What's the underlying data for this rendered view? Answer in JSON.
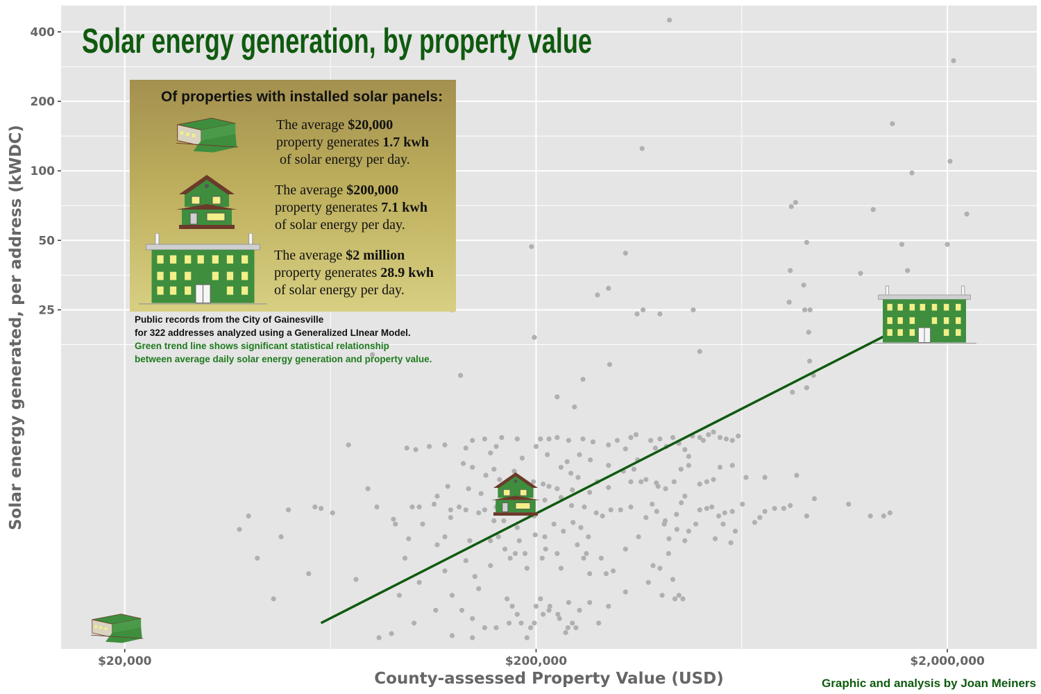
{
  "colors": {
    "panel": "#e5e5e5",
    "grid": "#ffffff",
    "point": "#b0b0b0",
    "trend": "#0f5a0f",
    "title": "#0f5a0f",
    "axis_text": "#666666",
    "house_green": "#3e8e3e",
    "roof_brown": "#6b3a2a",
    "window_yellow": "#f3ef8a"
  },
  "chart_data": {
    "type": "scatter",
    "title": "Solar energy generation, by property value",
    "xlabel": "County-assessed Property Value (USD)",
    "ylabel": "Solar energy generated, per address (kWDC)",
    "x_scale": "log",
    "y_scale": "log",
    "xlim": [
      14000,
      3300000
    ],
    "ylim": [
      0.85,
      520
    ],
    "x_ticks": [
      {
        "value": 20000,
        "label": "$20,000"
      },
      {
        "value": 200000,
        "label": "$200,000"
      },
      {
        "value": 2000000,
        "label": "$2,000,000"
      }
    ],
    "y_ticks": [
      {
        "value": 25,
        "label": "25"
      },
      {
        "value": 50,
        "label": "50"
      },
      {
        "value": 100,
        "label": "100"
      },
      {
        "value": 200,
        "label": "200"
      },
      {
        "value": 400,
        "label": "400"
      }
    ],
    "trend_line": {
      "points": [
        [
          60000,
          1.1
        ],
        [
          2000000,
          26.5
        ]
      ]
    },
    "points": [
      [
        422000,
        450
      ],
      [
        2070000,
        300
      ],
      [
        1470000,
        160
      ],
      [
        2030000,
        110
      ],
      [
        1640000,
        98
      ],
      [
        362000,
        125
      ],
      [
        835000,
        70
      ],
      [
        855000,
        73
      ],
      [
        1320000,
        68
      ],
      [
        2230000,
        65
      ],
      [
        195000,
        47
      ],
      [
        330000,
        44
      ],
      [
        910000,
        49
      ],
      [
        1550000,
        48
      ],
      [
        2000000,
        48
      ],
      [
        1230000,
        36
      ],
      [
        830000,
        37
      ],
      [
        1930000,
        25
      ],
      [
        1600000,
        37
      ],
      [
        895000,
        32
      ],
      [
        282000,
        29
      ],
      [
        300000,
        31
      ],
      [
        352000,
        24
      ],
      [
        364000,
        25
      ],
      [
        400000,
        24
      ],
      [
        482000,
        25
      ],
      [
        825000,
        27
      ],
      [
        900000,
        25
      ],
      [
        927000,
        25
      ],
      [
        1770000,
        25
      ],
      [
        1640000,
        25
      ],
      [
        125000,
        25
      ],
      [
        920000,
        20
      ],
      [
        1580000,
        19
      ],
      [
        198000,
        19
      ],
      [
        500000,
        16.5
      ],
      [
        925000,
        15
      ],
      [
        302000,
        14.5
      ],
      [
        131000,
        13
      ],
      [
        945000,
        13
      ],
      [
        260000,
        12.5
      ],
      [
        910000,
        11.5
      ],
      [
        225000,
        10.5
      ],
      [
        248000,
        9.5
      ],
      [
        840000,
        11
      ],
      [
        80000,
        16
      ],
      [
        70000,
        6.5
      ],
      [
        340000,
        7
      ],
      [
        350000,
        7.2
      ],
      [
        400000,
        6.9
      ],
      [
        480000,
        7.1
      ],
      [
        500000,
        7
      ],
      [
        510000,
        6.8
      ],
      [
        525000,
        7.2
      ],
      [
        540000,
        7.4
      ],
      [
        560000,
        7
      ],
      [
        580000,
        6.9
      ],
      [
        600000,
        6.8
      ],
      [
        620000,
        7.1
      ],
      [
        430000,
        7
      ],
      [
        445000,
        6.6
      ],
      [
        415000,
        6.4
      ],
      [
        460000,
        6.2
      ],
      [
        470000,
        5.8
      ],
      [
        390000,
        6.3
      ],
      [
        380000,
        6.8
      ],
      [
        300000,
        6.5
      ],
      [
        315000,
        6.8
      ],
      [
        275000,
        6.7
      ],
      [
        260000,
        6.9
      ],
      [
        240000,
        6.8
      ],
      [
        225000,
        7
      ],
      [
        215000,
        6.9
      ],
      [
        205000,
        6.9
      ],
      [
        180000,
        6.9
      ],
      [
        165000,
        7
      ],
      [
        150000,
        6.9
      ],
      [
        140000,
        6.8
      ],
      [
        160000,
        6.4
      ],
      [
        135000,
        6.3
      ],
      [
        155000,
        6
      ],
      [
        120000,
        6.5
      ],
      [
        110000,
        6.4
      ],
      [
        102000,
        6.2
      ],
      [
        97000,
        6.3
      ],
      [
        58000,
        3.5
      ],
      [
        60000,
        3.45
      ],
      [
        78000,
        4.2
      ],
      [
        82000,
        3.5
      ],
      [
        90000,
        3.1
      ],
      [
        96000,
        2.1
      ],
      [
        100000,
        3.5
      ],
      [
        104000,
        3.5
      ],
      [
        113000,
        3.6
      ],
      [
        115000,
        2.4
      ],
      [
        120000,
        2.6
      ],
      [
        124000,
        3.4
      ],
      [
        130000,
        3.5
      ],
      [
        135000,
        3.4
      ],
      [
        138000,
        2.5
      ],
      [
        145000,
        3.3
      ],
      [
        150000,
        3.4
      ],
      [
        160000,
        3.5
      ],
      [
        170000,
        3.4
      ],
      [
        175000,
        3.6
      ],
      [
        185000,
        3.4
      ],
      [
        192000,
        3.3
      ],
      [
        198000,
        3.2
      ],
      [
        115000,
        3.9
      ],
      [
        122000,
        4.3
      ],
      [
        137000,
        4.2
      ],
      [
        140000,
        5.2
      ],
      [
        147000,
        4
      ],
      [
        151000,
        4.8
      ],
      [
        158000,
        5.1
      ],
      [
        163000,
        4.6
      ],
      [
        170000,
        4.4
      ],
      [
        177000,
        5
      ],
      [
        182000,
        4.4
      ],
      [
        197000,
        4.5
      ],
      [
        208000,
        4.4
      ],
      [
        215000,
        4.3
      ],
      [
        225000,
        4.2
      ],
      [
        230000,
        5.2
      ],
      [
        238000,
        5.5
      ],
      [
        243000,
        4.9
      ],
      [
        253000,
        4.7
      ],
      [
        262000,
        3.5
      ],
      [
        268000,
        2.6
      ],
      [
        282000,
        4.5
      ],
      [
        290000,
        3.2
      ],
      [
        304000,
        3.4
      ],
      [
        321000,
        3.4
      ],
      [
        340000,
        3.5
      ],
      [
        340000,
        4.5
      ],
      [
        360000,
        4.5
      ],
      [
        370000,
        4.6
      ],
      [
        383000,
        3.6
      ],
      [
        396000,
        4.3
      ],
      [
        413000,
        4.2
      ],
      [
        433000,
        4.5
      ],
      [
        450000,
        5.1
      ],
      [
        470000,
        5.3
      ],
      [
        500000,
        4.4
      ],
      [
        520000,
        4.5
      ],
      [
        540000,
        4.6
      ],
      [
        560000,
        5.2
      ],
      [
        600000,
        5.3
      ],
      [
        648000,
        4.7
      ],
      [
        720000,
        4.7
      ],
      [
        860000,
        4.8
      ],
      [
        910000,
        3.2
      ],
      [
        950000,
        3.8
      ],
      [
        1150000,
        3.6
      ],
      [
        1300000,
        3.2
      ],
      [
        1400000,
        3.2
      ],
      [
        1450000,
        3.3
      ],
      [
        155000,
        2.5
      ],
      [
        162000,
        2.6
      ],
      [
        168000,
        2.3
      ],
      [
        173000,
        2.1
      ],
      [
        178000,
        2.2
      ],
      [
        182000,
        2.5
      ],
      [
        188000,
        2.2
      ],
      [
        190000,
        1.9
      ],
      [
        207000,
        2.1
      ],
      [
        211000,
        2.3
      ],
      [
        225000,
        2.2
      ],
      [
        230000,
        1.9
      ],
      [
        252000,
        2.4
      ],
      [
        261000,
        2.1
      ],
      [
        270000,
        1.8
      ],
      [
        288000,
        2.1
      ],
      [
        296000,
        1.8
      ],
      [
        308000,
        1.85
      ],
      [
        330000,
        2.3
      ],
      [
        355000,
        2.6
      ],
      [
        385000,
        1.95
      ],
      [
        405000,
        1.45
      ],
      [
        400000,
        1.9
      ],
      [
        430000,
        1.7
      ],
      [
        435000,
        1.4
      ],
      [
        445000,
        1.45
      ],
      [
        455000,
        1.4
      ],
      [
        330000,
        1.5
      ],
      [
        170000,
        1.4
      ],
      [
        200000,
        1.3
      ],
      [
        215000,
        1.25
      ],
      [
        226000,
        1.2
      ],
      [
        240000,
        1.35
      ],
      [
        255000,
        1.25
      ],
      [
        270000,
        1.35
      ],
      [
        284000,
        1.1
      ],
      [
        300000,
        1.3
      ],
      [
        125000,
        1.45
      ],
      [
        132000,
        1.25
      ],
      [
        140000,
        1.15
      ],
      [
        150000,
        1.05
      ],
      [
        175000,
        1.3
      ],
      [
        184000,
        1.1
      ],
      [
        194000,
        1.05
      ],
      [
        205000,
        1.4
      ],
      [
        216000,
        1.3
      ],
      [
        228000,
        1.15
      ],
      [
        239000,
        1.05
      ],
      [
        250000,
        1.05
      ],
      [
        93000,
        1.45
      ],
      [
        101000,
        1.1
      ],
      [
        114000,
        1.25
      ],
      [
        125000,
        0.97
      ],
      [
        140000,
        0.95
      ],
      [
        160000,
        1.05
      ],
      [
        172000,
        1.1
      ],
      [
        180000,
        1.2
      ],
      [
        198000,
        1.1
      ],
      [
        208000,
        1.2
      ],
      [
        190000,
        0.95
      ],
      [
        236000,
        1
      ],
      [
        245000,
        1.1
      ],
      [
        83000,
        0.95
      ],
      [
        89000,
        0.99
      ],
      [
        73000,
        1.7
      ],
      [
        64000,
        3.3
      ],
      [
        56000,
        1.8
      ],
      [
        50000,
        3.4
      ],
      [
        48000,
        2.6
      ],
      [
        46000,
        1.4
      ],
      [
        42000,
        2.1
      ],
      [
        40000,
        3.2
      ],
      [
        38000,
        2.8
      ],
      [
        280000,
        3.3
      ],
      [
        265000,
        2.2
      ],
      [
        420000,
        2.2
      ],
      [
        440000,
        2.8
      ],
      [
        460000,
        2.5
      ],
      [
        375000,
        1.65
      ],
      [
        410000,
        2.95
      ],
      [
        500000,
        3.4
      ],
      [
        535000,
        3.5
      ],
      [
        556000,
        3.2
      ],
      [
        575000,
        3.3
      ],
      [
        600000,
        3.35
      ],
      [
        635000,
        3.6
      ],
      [
        460000,
        3.9
      ],
      [
        392000,
        4.45
      ],
      [
        330000,
        6.25
      ],
      [
        346000,
        5.1
      ],
      [
        255000,
        5.9
      ],
      [
        271000,
        5.6
      ],
      [
        300000,
        5.3
      ],
      [
        326000,
        5
      ],
      [
        353000,
        5.6
      ],
      [
        185000,
        5.7
      ],
      [
        213000,
        5.9
      ],
      [
        200000,
        6.4
      ],
      [
        133000,
        5.4
      ],
      [
        124000,
        3.15
      ],
      [
        167000,
        3.05
      ],
      [
        98000,
        2.55
      ],
      [
        106000,
        2.95
      ],
      [
        91000,
        2.95
      ],
      [
        104000,
        1.65
      ],
      [
        142000,
        1.75
      ],
      [
        155000,
        1.95
      ],
      [
        210000,
        2.6
      ],
      [
        221000,
        2.95
      ],
      [
        233000,
        2.75
      ],
      [
        246000,
        3.0
      ],
      [
        257000,
        2.85
      ],
      [
        199000,
        2.65
      ],
      [
        180000,
        2.85
      ],
      [
        158000,
        3.05
      ],
      [
        244000,
        3.55
      ],
      [
        270000,
        4.05
      ],
      [
        300000,
        4.25
      ],
      [
        370000,
        3.15
      ],
      [
        393000,
        3.35
      ],
      [
        412000,
        3.05
      ],
      [
        421000,
        2.55
      ],
      [
        439000,
        3.25
      ],
      [
        451000,
        3.65
      ],
      [
        470000,
        2.75
      ],
      [
        489000,
        2.95
      ],
      [
        520000,
        3.45
      ],
      [
        545000,
        2.55
      ],
      [
        570000,
        2.95
      ],
      [
        595000,
        2.45
      ],
      [
        610000,
        2.75
      ],
      [
        680000,
        3.0
      ],
      [
        700000,
        3.15
      ],
      [
        720000,
        3.35
      ],
      [
        760000,
        3.45
      ],
      [
        800000,
        3.45
      ],
      [
        830000,
        3.55
      ],
      [
        180000,
        3.95
      ],
      [
        210000,
        3.75
      ],
      [
        230000,
        3.85
      ],
      [
        245000,
        4.15
      ],
      [
        135000,
        2.05
      ],
      [
        120000,
        1.85
      ],
      [
        145000,
        1.55
      ]
    ]
  },
  "info_box": {
    "heading": "Of properties with installed solar panels:",
    "items": [
      {
        "line1_pre": "The average ",
        "line1_bold": "$20,000",
        "line2_pre": "property generates ",
        "line2_bold": "1.7 kwh",
        "line3": " of solar energy per day."
      },
      {
        "line1_pre": "The average ",
        "line1_bold": "$200,000",
        "line2_pre": "property generates ",
        "line2_bold": "7.1 kwh",
        "line3": "of solar energy per day."
      },
      {
        "line1_pre": "The average ",
        "line1_bold": "$2 million",
        "line2_pre": "property generates ",
        "line2_bold": "28.9 kwh",
        "line3": "of solar energy per day."
      }
    ]
  },
  "notes": {
    "line1": "Public records from the City of Gainesville",
    "line2": "for 322 addresses analyzed using a Generalized LInear Model.",
    "line3": "Green trend line shows significant statistical relationship",
    "line4": "between average daily solar energy generation and property value."
  },
  "credit": "Graphic and analysis by Joan Meiners",
  "icons": [
    "trailer-home-icon",
    "house-icon",
    "mansion-icon"
  ]
}
